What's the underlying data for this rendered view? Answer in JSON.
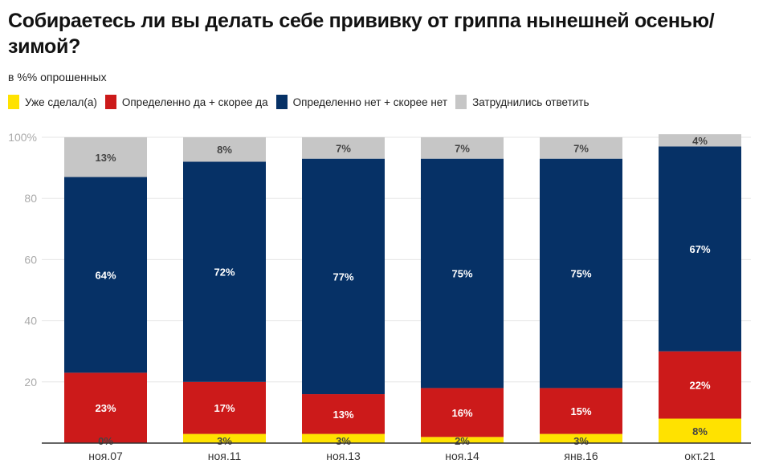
{
  "chart_data": {
    "type": "bar",
    "stacked": true,
    "title": "Собираетесь ли вы делать себе прививку от гриппа нынешней осенью/зимой?",
    "subtitle": "в %% опрошенных",
    "xlabel": "",
    "ylabel": "",
    "ylim": [
      0,
      100
    ],
    "yticks": [
      0,
      20,
      40,
      60,
      80,
      100
    ],
    "ytick_labels": [
      "",
      "20",
      "40",
      "60",
      "80",
      "100%"
    ],
    "grid": true,
    "legend_position": "top-left",
    "categories": [
      "ноя.07",
      "ноя.11",
      "ноя.13",
      "ноя.14",
      "янв.16",
      "окт.21"
    ],
    "series": [
      {
        "name": "Уже сделал(а)",
        "color": "#ffe200",
        "label_color": "#444444",
        "values": [
          0,
          3,
          3,
          2,
          3,
          8
        ]
      },
      {
        "name": "Определенно да + скорее да",
        "color": "#cc1a1a",
        "label_color": "#ffffff",
        "values": [
          23,
          17,
          13,
          16,
          15,
          22
        ]
      },
      {
        "name": "Определенно нет + скорее нет",
        "color": "#063166",
        "label_color": "#ffffff",
        "values": [
          64,
          72,
          77,
          75,
          75,
          67
        ]
      },
      {
        "name": "Затруднились ответить",
        "color": "#c6c6c6",
        "label_color": "#444444",
        "values": [
          13,
          8,
          7,
          7,
          7,
          4
        ]
      }
    ]
  }
}
